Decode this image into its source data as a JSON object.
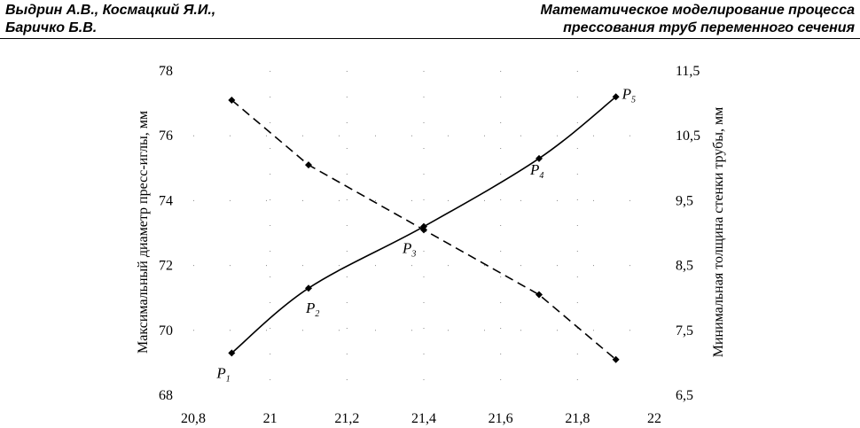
{
  "header": {
    "authors_line1": "Выдрин А.В., Космацкий Я.И.,",
    "authors_line2": "Баричко Б.В.",
    "title_line1": "Математическое моделирование процесса",
    "title_line2": "прессования труб переменного сечения"
  },
  "chart_data": {
    "type": "line",
    "xlabel": "",
    "ylabel_left": "Максимальный диаметр пресс-иглы, мм",
    "ylabel_right": "Минимальная толщина стенки трубы, мм",
    "xlim": [
      20.8,
      22
    ],
    "ylim_left": [
      68,
      78
    ],
    "ylim_right": [
      6.5,
      11.5
    ],
    "x_ticks": [
      "20,8",
      "21",
      "21,2",
      "21,4",
      "21,6",
      "21,8",
      "22"
    ],
    "y_left_ticks": [
      "68",
      "70",
      "72",
      "74",
      "76",
      "78"
    ],
    "y_right_ticks": [
      "6,5",
      "7,5",
      "8,5",
      "9,5",
      "10,5",
      "11,5"
    ],
    "grid": "dotted",
    "series": [
      {
        "axis": "left",
        "style": "solid",
        "x": [
          20.9,
          21.1,
          21.4,
          21.7,
          21.9
        ],
        "y": [
          69.3,
          71.3,
          73.2,
          75.3,
          77.2
        ],
        "point_labels": [
          {
            "main": "P",
            "sub": "1"
          },
          {
            "main": "P",
            "sub": "2"
          },
          {
            "main": "P",
            "sub": "3"
          },
          {
            "main": "P",
            "sub": "4"
          },
          {
            "main": "P",
            "sub": "5"
          }
        ]
      },
      {
        "axis": "right",
        "style": "dashed",
        "x": [
          20.9,
          21.1,
          21.4,
          21.7,
          21.9
        ],
        "y": [
          11.05,
          10.05,
          9.05,
          8.05,
          7.05
        ]
      }
    ],
    "colors": {
      "line": "#000000"
    }
  }
}
